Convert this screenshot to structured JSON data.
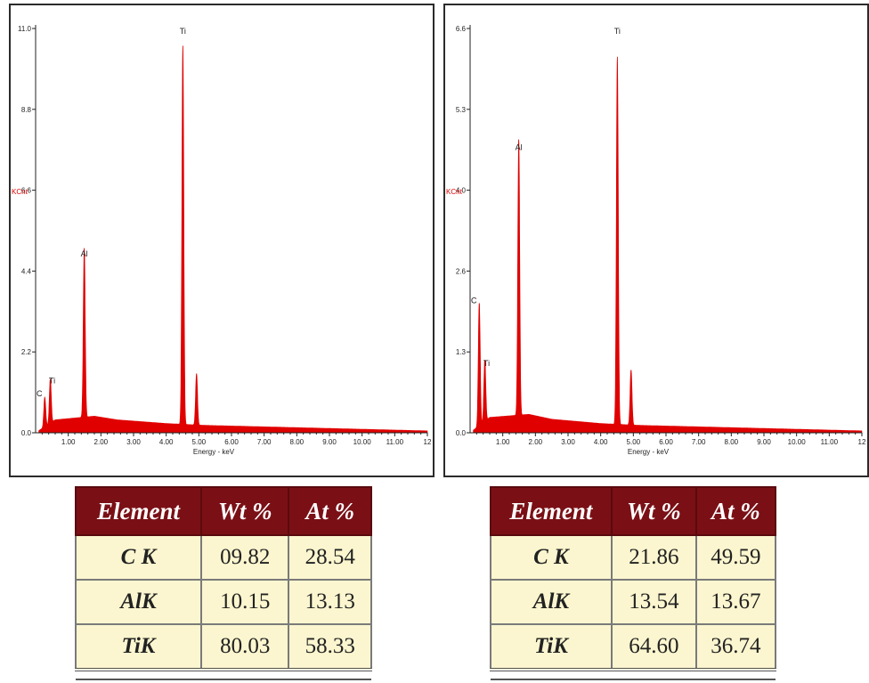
{
  "spectra": [
    {
      "panel": "left",
      "y_axis_label": "KCnt",
      "x_axis_label": "Energy - keV",
      "y_ticks": [
        "0.0",
        "2.2",
        "4.4",
        "6.6",
        "8.8",
        "11.0"
      ],
      "x_ticks": [
        "1.00",
        "2.00",
        "3.00",
        "4.00",
        "5.00",
        "6.00",
        "7.00",
        "8.00",
        "9.00",
        "10.00",
        "11.00",
        "12"
      ],
      "peak_labels": [
        "C",
        "Ti",
        "Al",
        "Ti"
      ]
    },
    {
      "panel": "right",
      "y_axis_label": "KCnt",
      "x_axis_label": "Energy - keV",
      "y_ticks": [
        "0.0",
        "1.3",
        "2.6",
        "4.0",
        "5.3",
        "6.6"
      ],
      "x_ticks": [
        "1.00",
        "2.00",
        "3.00",
        "4.00",
        "5.00",
        "6.00",
        "7.00",
        "8.00",
        "9.00",
        "10.00",
        "11.00",
        "12"
      ],
      "peak_labels": [
        "C",
        "Ti",
        "Al",
        "Ti"
      ]
    }
  ],
  "tables": [
    {
      "headers": [
        "Element",
        "Wt %",
        "At %"
      ],
      "rows": [
        [
          "C K",
          "09.82",
          "28.54"
        ],
        [
          "AlK",
          "10.15",
          "13.13"
        ],
        [
          "TiK",
          "80.03",
          "58.33"
        ]
      ]
    },
    {
      "headers": [
        "Element",
        "Wt %",
        "At %"
      ],
      "rows": [
        [
          "C K",
          "21.86",
          "49.59"
        ],
        [
          "AlK",
          "13.54",
          "13.67"
        ],
        [
          "TiK",
          "64.60",
          "36.74"
        ]
      ]
    }
  ],
  "colors": {
    "spectrum": "#e00000",
    "table_header": "#7a1016",
    "table_cell": "#fbf6cf"
  },
  "chart_data": [
    {
      "type": "area",
      "xlabel": "Energy - keV",
      "ylabel": "KCnt",
      "xlim": [
        0,
        12
      ],
      "ylim": [
        0,
        11.0
      ],
      "grid": false,
      "peaks": [
        {
          "label": "C",
          "x": 0.28,
          "y": 0.8
        },
        {
          "label": "Ti",
          "x": 0.45,
          "y": 1.2
        },
        {
          "label": "Al",
          "x": 1.49,
          "y": 4.6
        },
        {
          "label": "Ti",
          "x": 4.51,
          "y": 10.3
        },
        {
          "label": "",
          "x": 4.93,
          "y": 1.4
        }
      ],
      "background": {
        "x": [
          0.6,
          1.8,
          2.5,
          4.0,
          5.2,
          12
        ],
        "y": [
          0.35,
          0.45,
          0.35,
          0.25,
          0.2,
          0.05
        ]
      }
    },
    {
      "type": "area",
      "xlabel": "Energy - keV",
      "ylabel": "KCnt",
      "xlim": [
        0,
        12
      ],
      "ylim": [
        0,
        6.6
      ],
      "grid": false,
      "peaks": [
        {
          "label": "C",
          "x": 0.28,
          "y": 2.0
        },
        {
          "label": "Ti",
          "x": 0.45,
          "y": 1.0
        },
        {
          "label": "Al",
          "x": 1.49,
          "y": 4.5
        },
        {
          "label": "Ti",
          "x": 4.51,
          "y": 6.0
        },
        {
          "label": "",
          "x": 4.93,
          "y": 0.9
        }
      ],
      "background": {
        "x": [
          0.6,
          1.8,
          2.5,
          4.0,
          5.2,
          12
        ],
        "y": [
          0.25,
          0.3,
          0.22,
          0.15,
          0.12,
          0.03
        ]
      }
    }
  ]
}
